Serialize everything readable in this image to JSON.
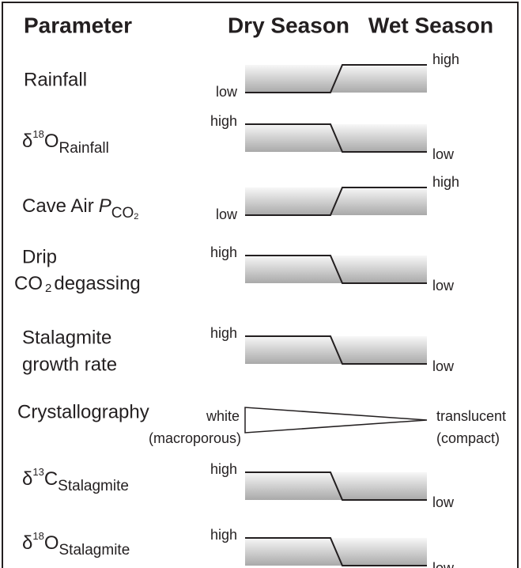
{
  "header": {
    "parameter": "Parameter",
    "dry": "Dry Season",
    "wet": "Wet Season"
  },
  "rows": [
    {
      "label": "Rainfall",
      "left": "low",
      "right": "high"
    },
    {
      "label": {
        "symbol": "δ",
        "sup": "18",
        "base": "O",
        "sub": "Rainfall"
      },
      "left": "high",
      "right": "low"
    },
    {
      "label": {
        "text": "Cave Air",
        "italic": "P",
        "sub": "CO",
        "subsub": "2"
      },
      "left": "low",
      "right": "high"
    },
    {
      "label": {
        "line1": "Drip",
        "base": "CO",
        "sub": "2",
        "rest": "degassing"
      },
      "left": "high",
      "right": "low"
    },
    {
      "label": {
        "line1": "Stalagmite",
        "line2": "growth rate"
      },
      "left": "high",
      "right": "low"
    },
    {
      "label": "Crystallography",
      "left": "white",
      "left_note": "(macroporous)",
      "right": "translucent",
      "right_note": "(compact)"
    },
    {
      "label": {
        "symbol": "δ",
        "sup": "13",
        "base": "C",
        "sub": "Stalagmite"
      },
      "left": "high",
      "right": "low"
    },
    {
      "label": {
        "symbol": "δ",
        "sup": "18",
        "base": "O",
        "sub": "Stalagmite"
      },
      "left": "high",
      "right": "low"
    }
  ]
}
